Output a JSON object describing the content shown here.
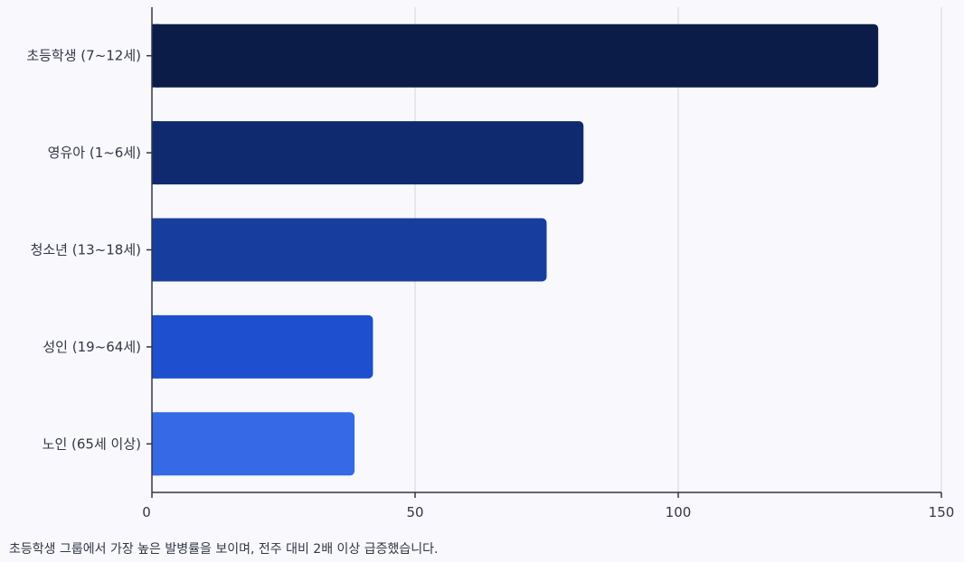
{
  "chart_data": {
    "type": "bar",
    "orientation": "horizontal",
    "categories": [
      "초등학생 (7~12세)",
      "영유아 (1~6세)",
      "청소년 (13~18세)",
      "성인 (19~64세)",
      "노인 (65세 이상)"
    ],
    "values": [
      138,
      82,
      75,
      42,
      38.5
    ],
    "colors": [
      "#0b1c48",
      "#0f2a6e",
      "#173e9e",
      "#1d4fce",
      "#3569e5"
    ],
    "xlim": [
      0,
      150
    ],
    "xticks": [
      0,
      50,
      100,
      150
    ],
    "grid": true,
    "title": "",
    "xlabel": "",
    "ylabel": ""
  },
  "caption": "초등학생 그룹에서 가장 높은 발병률을 보이며, 전주 대비 2배 이상 급증했습니다."
}
